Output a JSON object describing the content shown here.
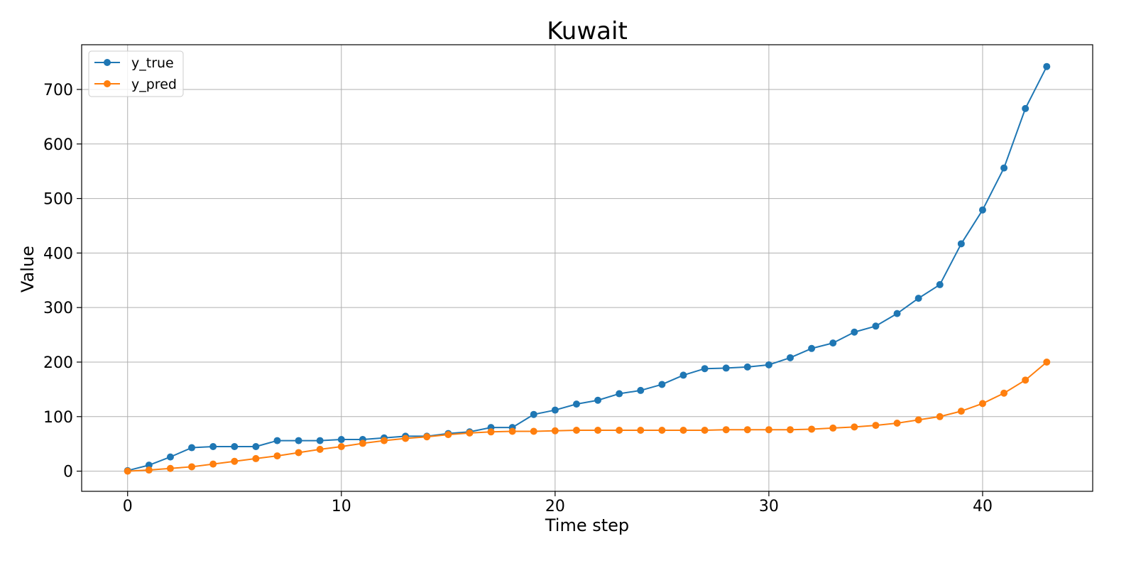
{
  "chart_data": {
    "type": "line",
    "title": "Kuwait",
    "xlabel": "Time step",
    "ylabel": "Value",
    "xlim": [
      -2.15,
      45.15
    ],
    "ylim": [
      -37,
      782
    ],
    "xticks": [
      0,
      10,
      20,
      30,
      40
    ],
    "yticks": [
      0,
      100,
      200,
      300,
      400,
      500,
      600,
      700
    ],
    "grid": true,
    "legend_position": "top-left",
    "x": [
      0,
      1,
      2,
      3,
      4,
      5,
      6,
      7,
      8,
      9,
      10,
      11,
      12,
      13,
      14,
      15,
      16,
      17,
      18,
      19,
      20,
      21,
      22,
      23,
      24,
      25,
      26,
      27,
      28,
      29,
      30,
      31,
      32,
      33,
      34,
      35,
      36,
      37,
      38,
      39,
      40,
      41,
      42,
      43
    ],
    "series": [
      {
        "name": "y_true",
        "color": "#1f77b4",
        "values": [
          1,
          11,
          26,
          43,
          45,
          45,
          45,
          56,
          56,
          56,
          58,
          58,
          61,
          64,
          64,
          69,
          72,
          80,
          80,
          104,
          112,
          123,
          130,
          142,
          148,
          159,
          176,
          188,
          189,
          191,
          195,
          208,
          225,
          235,
          255,
          266,
          289,
          317,
          342,
          417,
          479,
          556,
          665,
          742
        ]
      },
      {
        "name": "y_pred",
        "color": "#ff7f0e",
        "values": [
          0,
          2,
          5,
          8,
          13,
          18,
          23,
          28,
          34,
          40,
          45,
          51,
          56,
          60,
          63,
          67,
          70,
          72,
          73,
          73,
          74,
          75,
          75,
          75,
          75,
          75,
          75,
          75,
          76,
          76,
          76,
          76,
          77,
          79,
          81,
          84,
          88,
          94,
          100,
          110,
          124,
          143,
          167,
          200
        ]
      }
    ]
  }
}
